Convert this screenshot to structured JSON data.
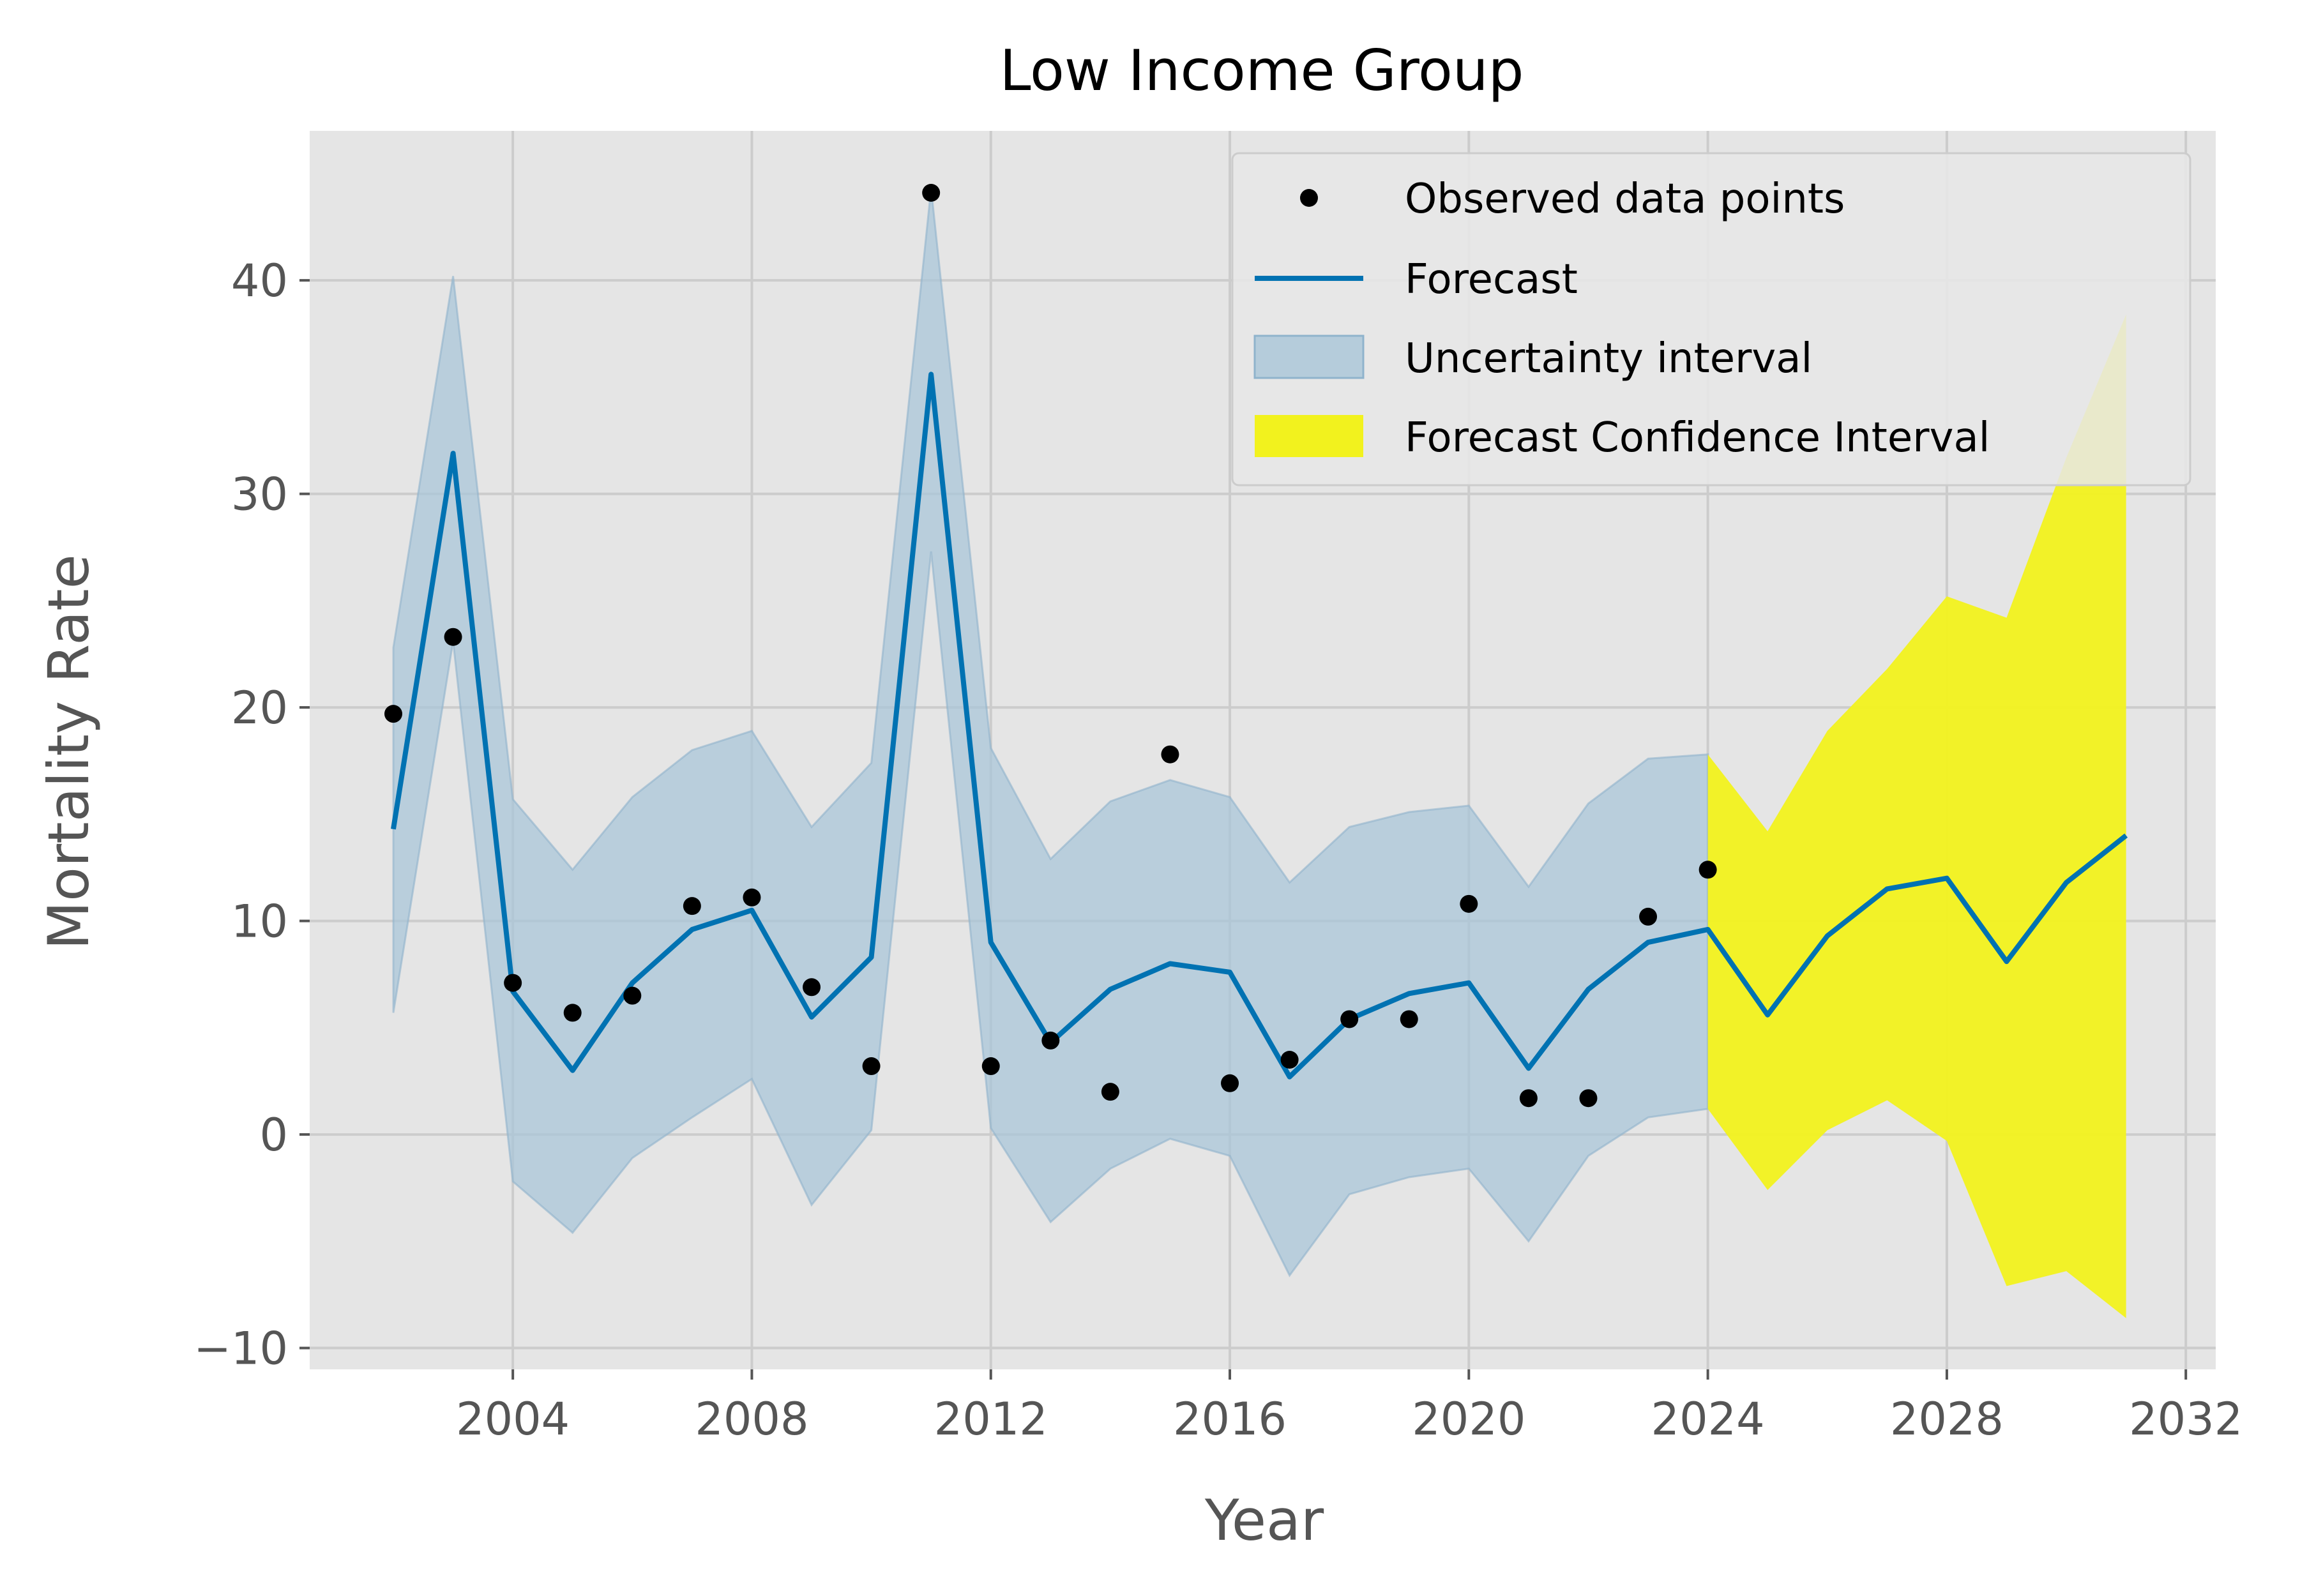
{
  "chart_data": {
    "type": "line",
    "title": "Low Income Group",
    "xlabel": "Year",
    "ylabel": "Mortality Rate",
    "xlim": [
      2000.6,
      2032.5
    ],
    "ylim": [
      -11,
      47
    ],
    "xticks": [
      2004,
      2008,
      2012,
      2016,
      2020,
      2024,
      2028,
      2032
    ],
    "yticks": [
      -10,
      0,
      10,
      20,
      30,
      40
    ],
    "yticklabels": [
      "−10",
      "0",
      "10",
      "20",
      "30",
      "40"
    ],
    "grid": true,
    "legend_position": "top-right",
    "colors": {
      "plot_background": "#e5e5e5",
      "grid": "#cccccc",
      "forecast_line": "#0072b2",
      "uncertainty_fill": "#a9c6d8",
      "forecast_ci_fill": "#f2f21e",
      "observed_points": "#000000"
    },
    "observed": {
      "name": "Observed data points",
      "x": [
        2002,
        2003,
        2004,
        2005,
        2006,
        2007,
        2008,
        2009,
        2010,
        2011,
        2012,
        2013,
        2014,
        2015,
        2016,
        2017,
        2018,
        2019,
        2020,
        2021,
        2022,
        2023,
        2024
      ],
      "y": [
        19.7,
        23.3,
        7.1,
        5.7,
        6.5,
        10.7,
        11.1,
        6.9,
        3.2,
        44.1,
        3.2,
        4.4,
        2.0,
        17.8,
        2.4,
        3.5,
        5.4,
        5.4,
        10.8,
        1.7,
        1.7,
        10.2,
        12.4
      ]
    },
    "forecast": {
      "name": "Forecast",
      "x": [
        2002,
        2003,
        2004,
        2005,
        2006,
        2007,
        2008,
        2009,
        2010,
        2011,
        2012,
        2013,
        2014,
        2015,
        2016,
        2017,
        2018,
        2019,
        2020,
        2021,
        2022,
        2023,
        2024,
        2025,
        2026,
        2027,
        2028,
        2029,
        2030,
        2031
      ],
      "y": [
        14.3,
        31.9,
        6.7,
        3.0,
        7.1,
        9.6,
        10.5,
        5.5,
        8.3,
        35.6,
        9.0,
        4.3,
        6.8,
        8.0,
        7.6,
        2.7,
        5.4,
        6.6,
        7.1,
        3.1,
        6.8,
        9.0,
        9.6,
        5.6,
        9.3,
        11.5,
        12.0,
        8.1,
        11.8,
        14.0
      ]
    },
    "uncertainty_interval": {
      "name": "Uncertainty interval",
      "x": [
        2002,
        2003,
        2004,
        2005,
        2006,
        2007,
        2008,
        2009,
        2010,
        2011,
        2012,
        2013,
        2014,
        2015,
        2016,
        2017,
        2018,
        2019,
        2020,
        2021,
        2022,
        2023,
        2024
      ],
      "lower": [
        5.7,
        23.1,
        -2.2,
        -4.6,
        -1.1,
        0.8,
        2.6,
        -3.3,
        0.2,
        27.3,
        0.3,
        -4.1,
        -1.6,
        -0.2,
        -1.0,
        -6.6,
        -2.8,
        -2.0,
        -1.6,
        -5.0,
        -1.0,
        0.8,
        1.2
      ],
      "upper": [
        22.8,
        40.2,
        15.7,
        12.4,
        15.8,
        18.0,
        18.9,
        14.4,
        17.4,
        44.3,
        18.1,
        12.9,
        15.6,
        16.6,
        15.8,
        11.8,
        14.4,
        15.1,
        15.4,
        11.6,
        15.5,
        17.6,
        17.8
      ]
    },
    "forecast_confidence_interval": {
      "name": "Forecast Confidence Interval",
      "x": [
        2024,
        2025,
        2026,
        2027,
        2028,
        2029,
        2030,
        2031
      ],
      "lower": [
        1.2,
        -2.6,
        0.2,
        1.6,
        -0.3,
        -7.1,
        -6.4,
        -8.6
      ],
      "upper": [
        17.8,
        14.2,
        18.9,
        21.8,
        25.2,
        24.2,
        31.7,
        38.4
      ]
    }
  }
}
